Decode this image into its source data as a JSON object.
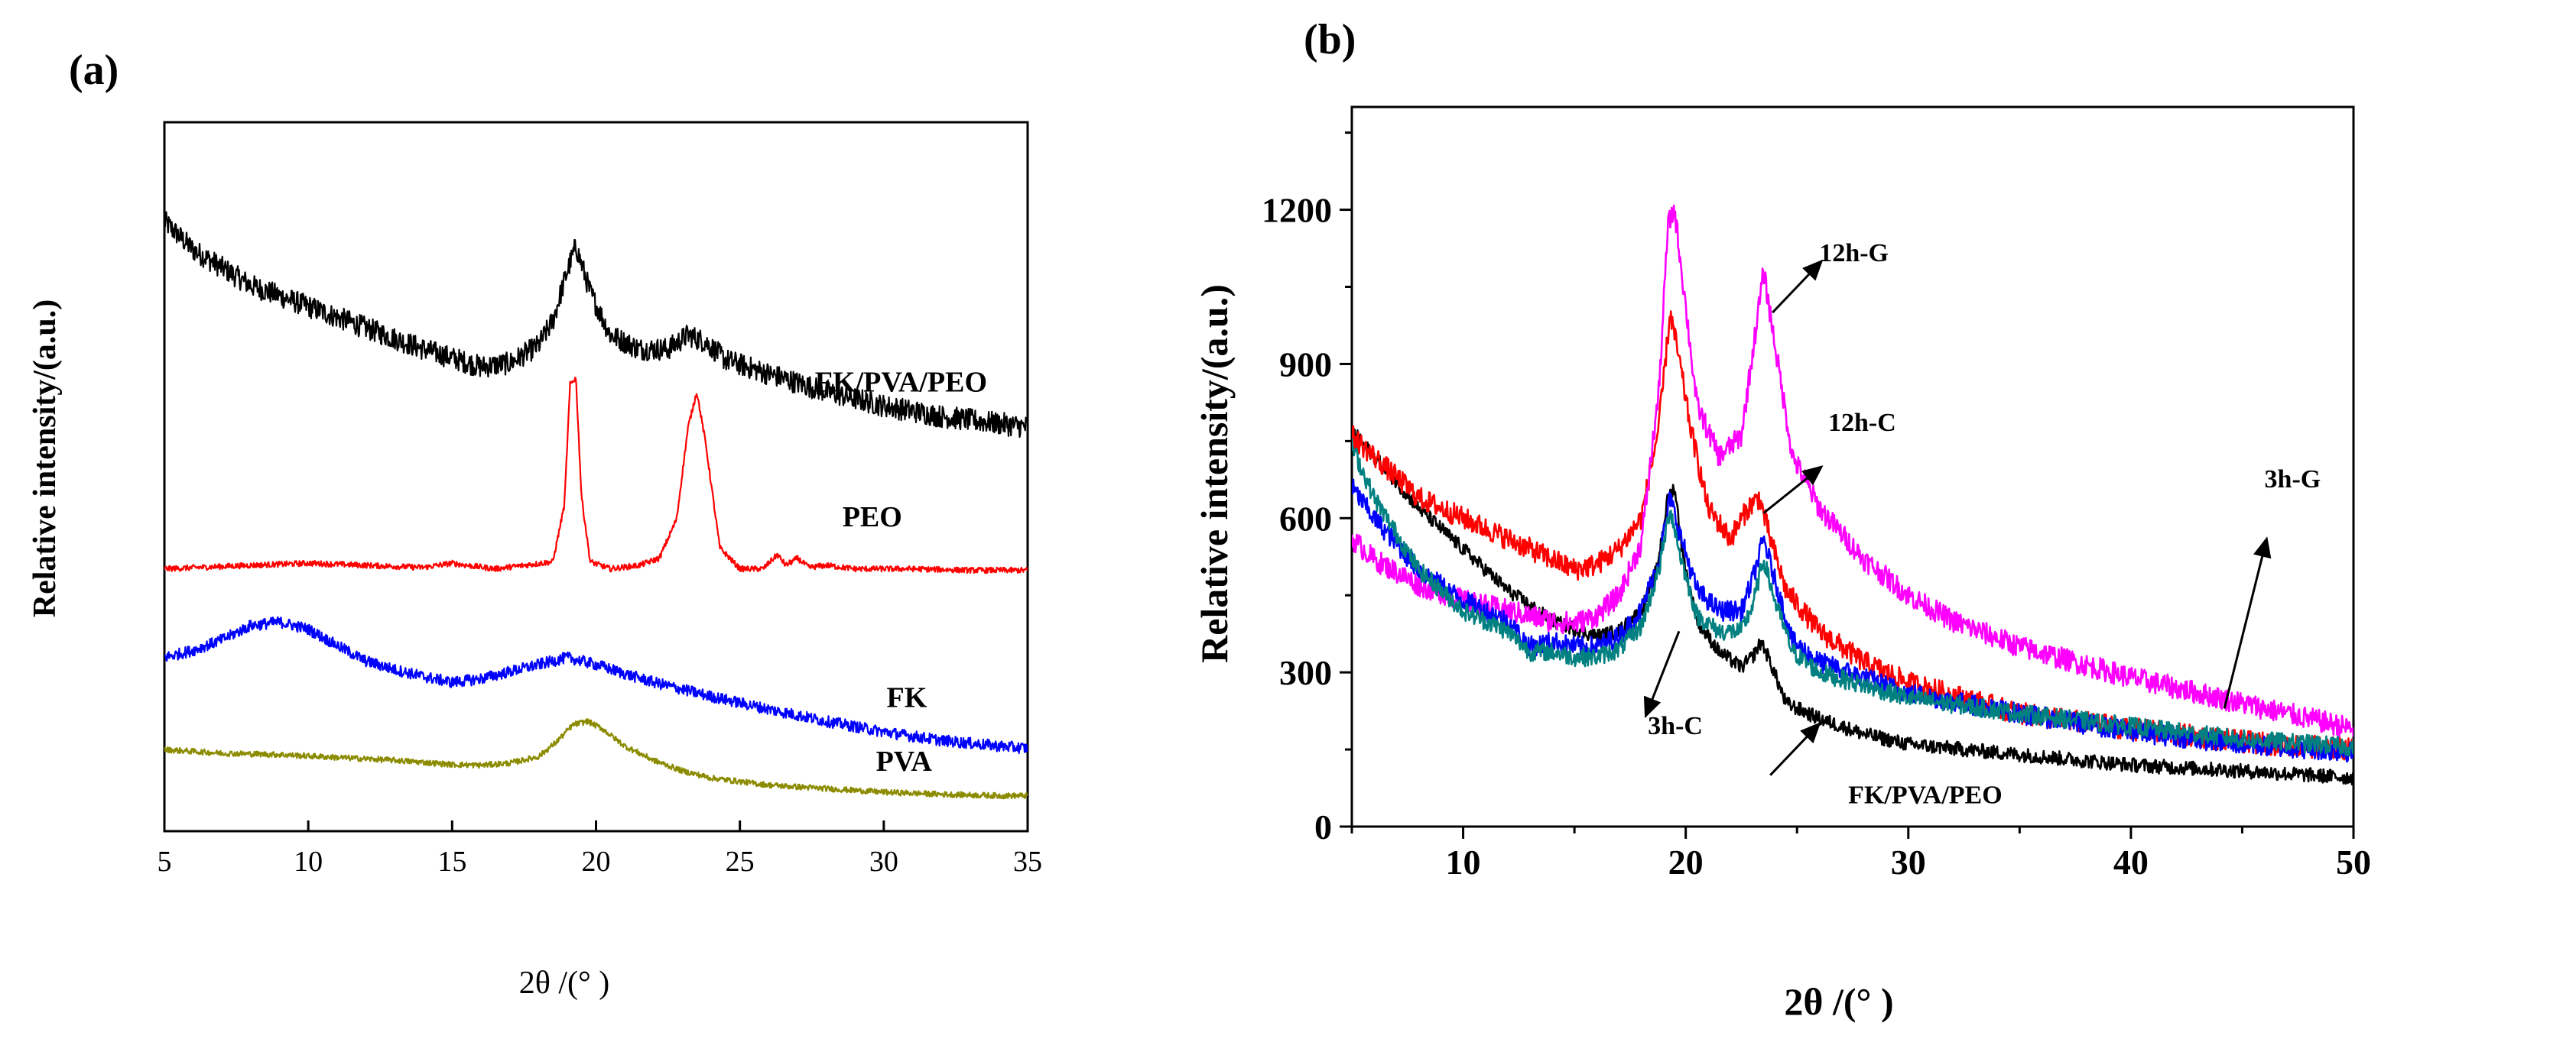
{
  "chart_data": [
    {
      "type": "line",
      "panel_label": "(a)",
      "title": "",
      "xlabel": "2θ /(° )",
      "ylabel": "Relative intensity/(a.u.)",
      "xlim": [
        5,
        35
      ],
      "ylim": [
        0,
        1.0
      ],
      "xticks": [
        5,
        10,
        15,
        20,
        25,
        30,
        35
      ],
      "show_yticks": false,
      "noise": 0.012,
      "series": [
        {
          "name": "FK/PVA/PEO",
          "color": "#000000",
          "noise": 0.016,
          "label_pos": [
            30.6,
            0.62
          ],
          "x": [
            5,
            6,
            8,
            10,
            12,
            14,
            16,
            17,
            18,
            18.5,
            19,
            19.3,
            19.8,
            20.5,
            21.5,
            22.5,
            23.2,
            23.8,
            24.5,
            26,
            28,
            30,
            32,
            34,
            35
          ],
          "y": [
            0.86,
            0.82,
            0.77,
            0.74,
            0.71,
            0.68,
            0.655,
            0.66,
            0.685,
            0.72,
            0.79,
            0.825,
            0.76,
            0.7,
            0.68,
            0.68,
            0.7,
            0.69,
            0.665,
            0.645,
            0.62,
            0.6,
            0.585,
            0.575,
            0.57
          ]
        },
        {
          "name": "PEO",
          "color": "#ff0000",
          "noise": 0.004,
          "label_pos": [
            29.6,
            0.43
          ],
          "x": [
            5,
            8,
            10,
            12,
            14,
            15,
            15.5,
            16.5,
            18.5,
            18.9,
            19.1,
            19.3,
            19.5,
            19.8,
            20.5,
            21.5,
            22.2,
            22.8,
            23.2,
            23.5,
            23.8,
            24.3,
            25.0,
            25.8,
            26.3,
            26.6,
            27.0,
            27.4,
            28,
            29,
            31,
            33,
            35
          ],
          "y": [
            0.37,
            0.375,
            0.378,
            0.375,
            0.372,
            0.378,
            0.375,
            0.37,
            0.38,
            0.46,
            0.63,
            0.64,
            0.47,
            0.38,
            0.37,
            0.375,
            0.385,
            0.44,
            0.57,
            0.62,
            0.55,
            0.4,
            0.37,
            0.37,
            0.39,
            0.375,
            0.385,
            0.372,
            0.375,
            0.37,
            0.37,
            0.368,
            0.368
          ]
        },
        {
          "name": "FK",
          "color": "#0000ff",
          "noise": 0.008,
          "label_pos": [
            30.8,
            0.175
          ],
          "x": [
            5,
            6,
            7,
            8,
            9,
            10,
            11,
            12,
            13,
            14,
            15,
            16,
            17,
            18,
            19,
            20,
            21,
            22,
            24,
            26,
            28,
            30,
            32,
            34,
            35
          ],
          "y": [
            0.245,
            0.255,
            0.27,
            0.29,
            0.295,
            0.285,
            0.262,
            0.24,
            0.228,
            0.218,
            0.21,
            0.215,
            0.225,
            0.235,
            0.245,
            0.235,
            0.222,
            0.21,
            0.19,
            0.172,
            0.155,
            0.14,
            0.128,
            0.12,
            0.117
          ]
        },
        {
          "name": "PVA",
          "color": "#8b8b00",
          "noise": 0.004,
          "label_pos": [
            30.7,
            0.085
          ],
          "x": [
            5,
            7,
            9,
            11,
            13,
            15,
            16,
            17,
            18,
            18.6,
            19.2,
            19.7,
            20.2,
            21,
            22,
            23,
            24,
            26,
            28,
            30,
            32,
            34,
            35
          ],
          "y": [
            0.115,
            0.11,
            0.108,
            0.104,
            0.1,
            0.094,
            0.093,
            0.096,
            0.105,
            0.125,
            0.15,
            0.155,
            0.145,
            0.12,
            0.1,
            0.085,
            0.075,
            0.065,
            0.06,
            0.055,
            0.052,
            0.05,
            0.05
          ]
        }
      ]
    },
    {
      "type": "line",
      "panel_label": "(b)",
      "title": "",
      "xlabel": "2θ /(° )",
      "ylabel": "Relative intensity/(a.u.)",
      "xlim": [
        5,
        50
      ],
      "ylim": [
        0,
        1400
      ],
      "xticks": [
        10,
        20,
        30,
        40,
        50
      ],
      "yticks": [
        0,
        300,
        600,
        900,
        1200
      ],
      "series": [
        {
          "name": "FK/PVA/PEO",
          "color": "#000000",
          "noise": 14,
          "x": [
            5,
            6,
            8,
            10,
            12,
            14,
            16,
            17,
            18,
            18.7,
            19.2,
            19.5,
            19.9,
            20.5,
            21.5,
            22.5,
            23.0,
            23.4,
            23.8,
            24.5,
            26,
            28,
            30,
            35,
            40,
            45,
            50
          ],
          "y": [
            770,
            720,
            620,
            540,
            460,
            400,
            370,
            380,
            420,
            500,
            640,
            660,
            520,
            400,
            340,
            310,
            330,
            360,
            320,
            240,
            210,
            180,
            160,
            140,
            120,
            108,
            95
          ]
        },
        {
          "name": "12h-C",
          "color": "#ff0000",
          "noise": 22,
          "x": [
            5,
            6,
            8,
            10,
            12,
            14,
            15,
            16,
            17,
            18,
            18.8,
            19.3,
            19.7,
            20.2,
            21,
            22,
            22.8,
            23.3,
            23.8,
            24.5,
            26,
            28,
            30,
            35,
            40,
            45,
            50
          ],
          "y": [
            760,
            720,
            640,
            600,
            560,
            520,
            500,
            510,
            540,
            600,
            780,
            1000,
            910,
            780,
            620,
            560,
            620,
            640,
            560,
            460,
            380,
            320,
            280,
            220,
            190,
            165,
            150
          ]
        },
        {
          "name": "12h-G",
          "color": "#ff00ff",
          "noise": 22,
          "x": [
            5,
            6,
            8,
            10,
            12,
            14,
            15,
            16,
            17,
            18,
            18.8,
            19.2,
            19.5,
            19.9,
            20.5,
            21.5,
            22.5,
            23.0,
            23.5,
            24.0,
            24.8,
            26,
            28,
            30,
            32,
            35,
            40,
            45,
            50
          ],
          "y": [
            560,
            520,
            470,
            440,
            420,
            400,
            395,
            410,
            450,
            550,
            850,
            1170,
            1200,
            1050,
            820,
            720,
            760,
            920,
            1080,
            940,
            720,
            620,
            520,
            450,
            400,
            350,
            290,
            240,
            190
          ]
        },
        {
          "name": "3h-G",
          "color": "#0000ff",
          "noise": 20,
          "x": [
            5,
            6,
            8,
            10,
            12,
            13,
            14,
            15,
            16,
            17,
            18,
            18.8,
            19.3,
            19.8,
            20.5,
            21.5,
            22.5,
            23.0,
            23.5,
            24.0,
            24.8,
            26,
            28,
            30,
            35,
            40,
            45,
            50
          ],
          "y": [
            660,
            600,
            500,
            440,
            400,
            350,
            360,
            350,
            350,
            370,
            420,
            520,
            640,
            560,
            460,
            420,
            420,
            480,
            560,
            480,
            360,
            320,
            290,
            260,
            220,
            185,
            160,
            145
          ]
        },
        {
          "name": "3h-C",
          "color": "#008080",
          "noise": 18,
          "x": [
            5,
            6,
            8,
            10,
            12,
            13,
            14,
            15,
            16,
            17,
            18,
            18.8,
            19.3,
            19.8,
            20.5,
            21.5,
            22.5,
            23.0,
            23.5,
            24.0,
            24.8,
            26,
            28,
            30,
            35,
            40,
            45,
            50
          ],
          "y": [
            740,
            640,
            500,
            420,
            380,
            340,
            340,
            330,
            330,
            345,
            390,
            500,
            620,
            520,
            410,
            380,
            380,
            430,
            520,
            440,
            340,
            300,
            275,
            250,
            220,
            195,
            170,
            155
          ]
        }
      ],
      "annotations": [
        {
          "text": "12h-G",
          "text_pos": [
            26.0,
            1100
          ],
          "arrow_from": [
            23.9,
            1000
          ],
          "arrow_to": [
            26.1,
            1100
          ]
        },
        {
          "text": "12h-C",
          "text_pos": [
            26.4,
            770
          ],
          "arrow_from": [
            23.5,
            610
          ],
          "arrow_to": [
            26.1,
            700
          ]
        },
        {
          "text": "3h-G",
          "text_pos": [
            46.0,
            660
          ],
          "arrow_from": [
            44.2,
            230
          ],
          "arrow_to": [
            46.1,
            560
          ]
        },
        {
          "text": "3h-C",
          "text_pos": [
            18.3,
            180
          ],
          "arrow_from": [
            19.7,
            380
          ],
          "arrow_to": [
            18.2,
            215
          ]
        },
        {
          "text": "FK/PVA/PEO",
          "text_pos": [
            27.3,
            45
          ],
          "arrow_from": [
            23.8,
            100
          ],
          "arrow_to": [
            26.0,
            200
          ]
        }
      ]
    }
  ]
}
